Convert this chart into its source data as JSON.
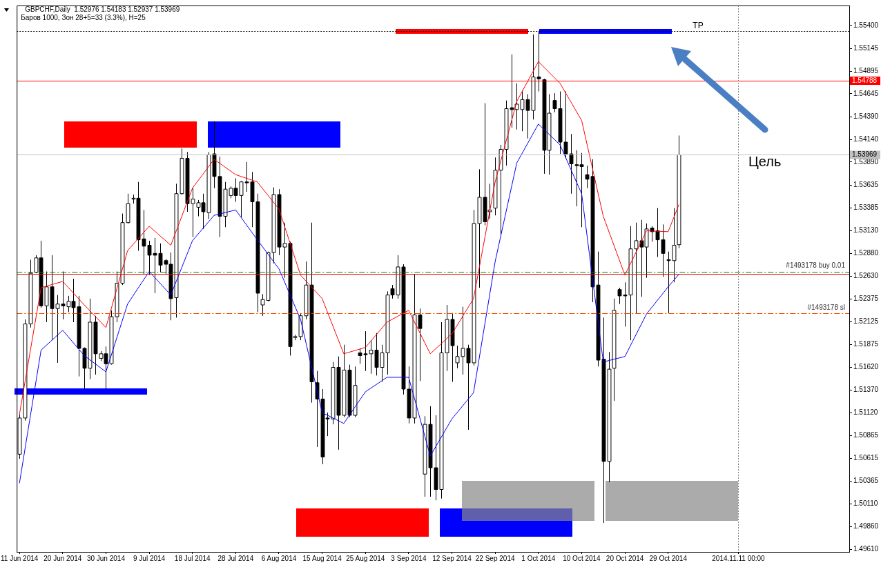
{
  "chart_data": {
    "type": "candlestick",
    "title": "GBPCHF,Daily  1.52976 1.54183 1.52937 1.53969",
    "subtitle": "Баров 1000, Зон 28+5=33 (3.3%), H=25",
    "categories": [
      "11 Jun 2014",
      null,
      null,
      null,
      null,
      null,
      null,
      null,
      "20 Jun 2014",
      null,
      null,
      null,
      null,
      null,
      null,
      null,
      "30 Jun 2014",
      null,
      null,
      null,
      null,
      null,
      null,
      null,
      "9 Jul 2014",
      null,
      null,
      null,
      null,
      null,
      null,
      null,
      "18 Jul 2014",
      null,
      null,
      null,
      null,
      null,
      null,
      null,
      "28 Jul 2014",
      null,
      null,
      null,
      null,
      null,
      null,
      null,
      "6 Aug 2014",
      null,
      null,
      null,
      null,
      null,
      null,
      null,
      "15 Aug 2014",
      null,
      null,
      null,
      null,
      null,
      null,
      null,
      "25 Aug 2014",
      null,
      null,
      null,
      null,
      null,
      null,
      null,
      "3 Sep 2014",
      null,
      null,
      null,
      null,
      null,
      null,
      null,
      "12 Sep 2014",
      null,
      null,
      null,
      null,
      null,
      null,
      null,
      "22 Sep 2014",
      null,
      null,
      null,
      null,
      null,
      null,
      null,
      "1 Oct 2014",
      null,
      null,
      null,
      null,
      null,
      null,
      null,
      "10 Oct 2014",
      null,
      null,
      null,
      null,
      null,
      null,
      null,
      "20 Oct 2014",
      null,
      null,
      null,
      null,
      null,
      null,
      null,
      "29 Oct 2014",
      null,
      null,
      null,
      null,
      null,
      null,
      null,
      null,
      null,
      null,
      null,
      null,
      "2014.11.11 00:00",
      null,
      null,
      null,
      null,
      null,
      null,
      null,
      null,
      null,
      null,
      null,
      null,
      null,
      null,
      null,
      null,
      null,
      null,
      null,
      null
    ],
    "ohlc": [
      [
        1.5066,
        1.511,
        1.5061,
        1.5106
      ],
      [
        1.5106,
        1.5215,
        1.5103,
        1.521
      ],
      [
        1.521,
        1.5281,
        1.5206,
        1.5266
      ],
      [
        1.5267,
        1.5286,
        1.5266,
        1.5283
      ],
      [
        1.5283,
        1.5302,
        1.5228,
        1.523
      ],
      [
        1.523,
        1.5268,
        1.5212,
        1.5251
      ],
      [
        1.5251,
        1.5286,
        1.5192,
        1.5227
      ],
      [
        1.5227,
        1.5242,
        1.5167,
        1.5232
      ],
      [
        1.5232,
        1.5268,
        1.5215,
        1.523
      ],
      [
        1.5229,
        1.5241,
        1.5223,
        1.5235
      ],
      [
        1.5235,
        1.526,
        1.5212,
        1.5228
      ],
      [
        1.5229,
        1.5241,
        1.5152,
        1.5183
      ],
      [
        1.5183,
        1.5184,
        1.5138,
        1.5161
      ],
      [
        1.5161,
        1.5238,
        1.5149,
        1.5212
      ],
      [
        1.5212,
        1.5219,
        1.5154,
        1.5177
      ],
      [
        1.5172,
        1.518,
        1.5169,
        1.5177
      ],
      [
        1.5177,
        1.5185,
        1.5138,
        1.5166
      ],
      [
        1.5166,
        1.5225,
        1.5165,
        1.5218
      ],
      [
        1.5218,
        1.5268,
        1.5212,
        1.5255
      ],
      [
        1.5255,
        1.5332,
        1.5253,
        1.5322
      ],
      [
        1.5322,
        1.5354,
        1.5321,
        1.5343
      ],
      [
        1.5348,
        1.5353,
        1.5343,
        1.5349
      ],
      [
        1.5349,
        1.5367,
        1.5291,
        1.5303
      ],
      [
        1.5304,
        1.5336,
        1.5265,
        1.5296
      ],
      [
        1.5297,
        1.5302,
        1.5264,
        1.5286
      ],
      [
        1.5288,
        1.5305,
        1.5244,
        1.5286
      ],
      [
        1.5288,
        1.5299,
        1.5267,
        1.5275
      ],
      [
        1.528,
        1.5282,
        1.5265,
        1.5276
      ],
      [
        1.5276,
        1.5289,
        1.5214,
        1.5238
      ],
      [
        1.5239,
        1.5365,
        1.5217,
        1.5354
      ],
      [
        1.5354,
        1.5404,
        1.5353,
        1.5393
      ],
      [
        1.5393,
        1.54,
        1.5334,
        1.5343
      ],
      [
        1.5343,
        1.536,
        1.5306,
        1.5348
      ],
      [
        1.5339,
        1.5347,
        1.5329,
        1.5344
      ],
      [
        1.5344,
        1.5354,
        1.5315,
        1.5334
      ],
      [
        1.5333,
        1.54,
        1.5326,
        1.5397
      ],
      [
        1.5398,
        1.5434,
        1.536,
        1.5373
      ],
      [
        1.5373,
        1.5395,
        1.5306,
        1.5329
      ],
      [
        1.5329,
        1.5367,
        1.5317,
        1.5359
      ],
      [
        1.5352,
        1.5362,
        1.5349,
        1.536
      ],
      [
        1.536,
        1.5371,
        1.5345,
        1.5352
      ],
      [
        1.5352,
        1.5368,
        1.5328,
        1.5367
      ],
      [
        1.5367,
        1.5389,
        1.5356,
        1.5366
      ],
      [
        1.5367,
        1.5378,
        1.5317,
        1.5345
      ],
      [
        1.5345,
        1.5354,
        1.5223,
        1.5244
      ],
      [
        1.5231,
        1.5243,
        1.5219,
        1.5237
      ],
      [
        1.5236,
        1.529,
        1.5235,
        1.5289
      ],
      [
        1.5289,
        1.5361,
        1.5277,
        1.5353
      ],
      [
        1.5353,
        1.5359,
        1.5286,
        1.5295
      ],
      [
        1.5295,
        1.5322,
        1.5261,
        1.5299
      ],
      [
        1.5299,
        1.5301,
        1.5175,
        1.5185
      ],
      [
        1.5195,
        1.5198,
        1.5192,
        1.5196
      ],
      [
        1.5196,
        1.5222,
        1.5192,
        1.5219
      ],
      [
        1.5219,
        1.5279,
        1.5215,
        1.5253
      ],
      [
        1.5253,
        1.5322,
        1.5123,
        1.5146
      ],
      [
        1.5145,
        1.5158,
        1.5074,
        1.5127
      ],
      [
        1.5127,
        1.5138,
        1.5055,
        1.5063
      ],
      [
        1.5106,
        1.5112,
        1.5086,
        1.5105
      ],
      [
        1.5105,
        1.5168,
        1.5099,
        1.5162
      ],
      [
        1.5162,
        1.5174,
        1.5071,
        1.5109
      ],
      [
        1.5109,
        1.5187,
        1.5107,
        1.5159
      ],
      [
        1.5159,
        1.5165,
        1.5107,
        1.5109
      ],
      [
        1.5109,
        1.5163,
        1.5107,
        1.5142
      ],
      [
        1.5178,
        1.5183,
        1.5166,
        1.5175
      ],
      [
        1.5177,
        1.5202,
        1.5158,
        1.5176
      ],
      [
        1.5177,
        1.5192,
        1.5155,
        1.5181
      ],
      [
        1.5181,
        1.52,
        1.5153,
        1.5162
      ],
      [
        1.5162,
        1.5187,
        1.5146,
        1.5178
      ],
      [
        1.5178,
        1.5246,
        1.5154,
        1.5242
      ],
      [
        1.5249,
        1.5253,
        1.5238,
        1.5242
      ],
      [
        1.5242,
        1.5286,
        1.5238,
        1.5273
      ],
      [
        1.5273,
        1.5276,
        1.5132,
        1.5138
      ],
      [
        1.5138,
        1.5163,
        1.51,
        1.5106
      ],
      [
        1.5106,
        1.5265,
        1.51,
        1.522
      ],
      [
        1.522,
        1.5227,
        1.5147,
        1.5205
      ],
      [
        1.5044,
        1.5108,
        1.5019,
        1.5099
      ],
      [
        1.5099,
        1.5119,
        1.5019,
        1.5051
      ],
      [
        1.5051,
        1.5109,
        1.5015,
        1.5027
      ],
      [
        1.5027,
        1.5212,
        1.5017,
        1.5178
      ],
      [
        1.5178,
        1.5231,
        1.5158,
        1.5215
      ],
      [
        1.5215,
        1.5222,
        1.5146,
        1.5186
      ],
      [
        1.5167,
        1.5186,
        1.5161,
        1.5174
      ],
      [
        1.5174,
        1.5229,
        1.5154,
        1.5183
      ],
      [
        1.5183,
        1.5187,
        1.5093,
        1.5167
      ],
      [
        1.5167,
        1.5336,
        1.5164,
        1.5321
      ],
      [
        1.5321,
        1.5381,
        1.525,
        1.535
      ],
      [
        1.535,
        1.5454,
        1.5319,
        1.5323
      ],
      [
        1.5334,
        1.5365,
        1.5326,
        1.5336
      ],
      [
        1.5338,
        1.5394,
        1.533,
        1.538
      ],
      [
        1.538,
        1.5408,
        1.5309,
        1.5403
      ],
      [
        1.5403,
        1.5457,
        1.5385,
        1.5448
      ],
      [
        1.5449,
        1.5508,
        1.5427,
        1.5447
      ],
      [
        1.5447,
        1.5476,
        1.5425,
        1.5453
      ],
      [
        1.5447,
        1.5468,
        1.5423,
        1.5458
      ],
      [
        1.5458,
        1.5464,
        1.5415,
        1.5446
      ],
      [
        1.5446,
        1.553,
        1.5436,
        1.5483
      ],
      [
        1.5483,
        1.5534,
        1.5467,
        1.5481
      ],
      [
        1.548,
        1.5481,
        1.5376,
        1.5402
      ],
      [
        1.5402,
        1.5464,
        1.5375,
        1.5443
      ],
      [
        1.5457,
        1.5465,
        1.5444,
        1.5448
      ],
      [
        1.5448,
        1.5467,
        1.5398,
        1.5411
      ],
      [
        1.5411,
        1.5467,
        1.5393,
        1.5398
      ],
      [
        1.5398,
        1.542,
        1.5354,
        1.5387
      ],
      [
        1.5386,
        1.5402,
        1.534,
        1.5385
      ],
      [
        1.5386,
        1.5399,
        1.5317,
        1.5384
      ],
      [
        1.5375,
        1.5385,
        1.536,
        1.537
      ],
      [
        1.5373,
        1.5392,
        1.5234,
        1.5251
      ],
      [
        1.5253,
        1.529,
        1.5163,
        1.517
      ],
      [
        1.5171,
        1.5217,
        1.499,
        1.5058
      ],
      [
        1.5058,
        1.5179,
        1.5035,
        1.516
      ],
      [
        1.5161,
        1.5238,
        1.5125,
        1.5225
      ],
      [
        1.5248,
        1.525,
        1.5232,
        1.5241
      ],
      [
        1.5242,
        1.5256,
        1.5207,
        1.5241
      ],
      [
        1.5242,
        1.5318,
        1.5192,
        1.5293
      ],
      [
        1.5293,
        1.5322,
        1.5221,
        1.5302
      ],
      [
        1.5302,
        1.5325,
        1.524,
        1.5295
      ],
      [
        1.5295,
        1.5321,
        1.5261,
        1.5315
      ],
      [
        1.5316,
        1.5318,
        1.5301,
        1.5312
      ],
      [
        1.5313,
        1.5338,
        1.5284,
        1.5303
      ],
      [
        1.5303,
        1.532,
        1.5262,
        1.5288
      ],
      [
        1.5281,
        1.529,
        1.5222,
        1.528
      ],
      [
        1.528,
        1.5338,
        1.5256,
        1.5297
      ],
      [
        1.52976,
        1.54183,
        1.52937,
        1.53969
      ],
      null,
      null,
      null,
      null,
      null,
      null,
      null,
      null,
      null,
      null,
      null,
      null,
      null,
      null,
      null,
      null,
      null,
      null,
      null,
      null,
      null,
      null,
      null,
      null,
      null,
      null,
      null,
      null,
      null,
      null,
      null
    ],
    "series": [
      {
        "type": "line",
        "color": "#ff0000",
        "values": [
          1.511,
          null,
          null,
          null,
          1.525,
          null,
          null,
          null,
          1.5257,
          null,
          null,
          null,
          1.5231,
          null,
          null,
          null,
          1.5206,
          null,
          null,
          null,
          1.5291,
          null,
          null,
          null,
          1.5318,
          null,
          null,
          null,
          1.5297,
          null,
          null,
          null,
          1.536,
          null,
          null,
          null,
          1.5392,
          null,
          null,
          null,
          1.5375,
          null,
          null,
          null,
          1.5367,
          null,
          null,
          null,
          1.5337,
          null,
          null,
          null,
          1.5264,
          null,
          null,
          null,
          1.5238,
          null,
          null,
          null,
          1.5177,
          null,
          null,
          null,
          1.5184,
          null,
          null,
          null,
          1.5212,
          null,
          null,
          null,
          1.5225,
          null,
          null,
          null,
          1.5177,
          null,
          null,
          null,
          1.5199,
          null,
          null,
          null,
          1.5238,
          null,
          null,
          null,
          1.5367,
          null,
          null,
          null,
          1.5456,
          null,
          null,
          null,
          1.55,
          null,
          null,
          null,
          1.5476,
          null,
          null,
          null,
          1.5435,
          null,
          null,
          null,
          1.5329,
          null,
          null,
          null,
          1.5264,
          null,
          null,
          null,
          1.5313,
          null,
          null,
          null,
          1.5312,
          null,
          1.5342,
          null,
          null,
          null,
          null,
          null,
          null,
          null,
          null,
          null,
          null,
          null,
          null,
          null,
          null,
          null,
          null,
          null,
          null,
          null,
          null,
          null,
          null,
          null,
          null,
          null,
          null,
          null,
          null,
          null,
          null,
          null
        ]
      },
      {
        "type": "line",
        "color": "#0000ff",
        "values": [
          1.5034,
          null,
          null,
          null,
          1.5181,
          null,
          null,
          null,
          1.5203,
          null,
          null,
          null,
          1.5175,
          null,
          null,
          null,
          1.5157,
          null,
          null,
          null,
          1.5232,
          null,
          null,
          null,
          1.5268,
          null,
          null,
          null,
          1.5242,
          null,
          null,
          null,
          1.5302,
          null,
          null,
          null,
          1.533,
          null,
          null,
          null,
          1.5336,
          null,
          null,
          null,
          1.5303,
          null,
          null,
          null,
          1.5271,
          null,
          null,
          null,
          1.5215,
          null,
          null,
          null,
          1.5112,
          null,
          null,
          null,
          1.51,
          null,
          null,
          null,
          1.5135,
          null,
          null,
          null,
          1.5151,
          null,
          null,
          null,
          1.5151,
          null,
          null,
          null,
          1.5064,
          null,
          null,
          null,
          1.5105,
          null,
          null,
          null,
          1.5134,
          null,
          null,
          null,
          1.5279,
          null,
          null,
          null,
          1.5388,
          null,
          null,
          null,
          1.5431,
          null,
          null,
          null,
          1.5408,
          null,
          null,
          null,
          1.5354,
          null,
          null,
          null,
          1.5168,
          null,
          null,
          null,
          1.5174,
          null,
          null,
          null,
          1.5221,
          null,
          null,
          null,
          1.5251,
          null,
          1.5265,
          null,
          null,
          null,
          null,
          null,
          null,
          null,
          null,
          null,
          null,
          null,
          null,
          null,
          null,
          null,
          null,
          null,
          null,
          null,
          null,
          null,
          null,
          null,
          null,
          null,
          null,
          null,
          null,
          null,
          null,
          null
        ]
      }
    ],
    "ylim": [
      1.4958,
      1.5562
    ],
    "yticks": [
      {
        "value": 1.554,
        "label": "1.55400"
      },
      {
        "value": 1.55145,
        "label": "1.55145"
      },
      {
        "value": 1.54895,
        "label": "1.54895"
      },
      {
        "value": 1.54645,
        "label": "1.54645"
      },
      {
        "value": 1.5439,
        "label": "1.54390"
      },
      {
        "value": 1.5414,
        "label": "1.54140"
      },
      {
        "value": 1.5389,
        "label": "1.53890"
      },
      {
        "value": 1.53635,
        "label": "1.53635"
      },
      {
        "value": 1.53385,
        "label": "1.53385"
      },
      {
        "value": 1.5313,
        "label": "1.53130"
      },
      {
        "value": 1.5288,
        "label": "1.52880"
      },
      {
        "value": 1.5263,
        "label": "1.52630"
      },
      {
        "value": 1.52375,
        "label": "1.52375"
      },
      {
        "value": 1.52125,
        "label": "1.52125"
      },
      {
        "value": 1.51875,
        "label": "1.51875"
      },
      {
        "value": 1.5162,
        "label": "1.51620"
      },
      {
        "value": 1.5137,
        "label": "1.51370"
      },
      {
        "value": 1.5112,
        "label": "1.51120"
      },
      {
        "value": 1.50865,
        "label": "1.50865"
      },
      {
        "value": 1.50615,
        "label": "1.50615"
      },
      {
        "value": 1.50365,
        "label": "1.50365"
      },
      {
        "value": 1.5011,
        "label": "1.50110"
      },
      {
        "value": 1.4986,
        "label": "1.49860"
      },
      {
        "value": 1.4961,
        "label": "1.49610"
      }
    ],
    "ref_lines": [
      {
        "axis": "y",
        "value": 1.5265,
        "color": "#ff0000",
        "line_style": "solid"
      },
      {
        "axis": "y",
        "value": 1.5268,
        "label": "#1493178 buy 0.01",
        "color": "#008000",
        "line_style": "dashed"
      },
      {
        "axis": "y",
        "value": 1.5222,
        "label": "#1493178 sl",
        "color": "#ff4500",
        "line_style": "dashed"
      },
      {
        "axis": "y",
        "value": 1.54788,
        "label": "1.54788",
        "color": "#ff0000",
        "line_style": "solid"
      },
      {
        "axis": "y",
        "value": 1.53969,
        "label": "1.53969",
        "color": "#c0c0c0",
        "line_style": "solid"
      },
      {
        "axis": "y",
        "value": 1.5534,
        "label": "TP",
        "color": "#000000",
        "line_style": "dotted"
      },
      {
        "axis": "x",
        "value": "2014.11.11 00:00",
        "color": "#808080",
        "line_style": "dotted"
      }
    ],
    "annotations": [
      "Цель"
    ],
    "grid": false,
    "legend": false
  }
}
